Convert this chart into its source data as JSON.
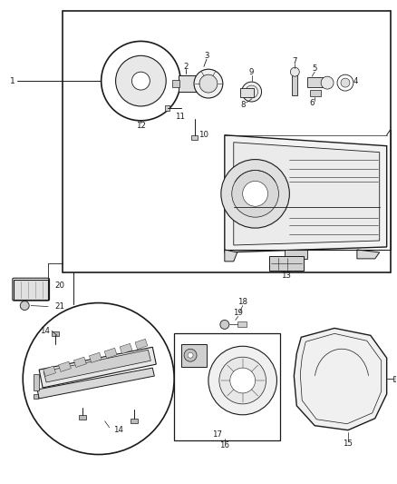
{
  "bg_color": "#ffffff",
  "line_color": "#1a1a1a",
  "text_color": "#1a1a1a",
  "fig_width": 4.38,
  "fig_height": 5.33,
  "dpi": 100
}
